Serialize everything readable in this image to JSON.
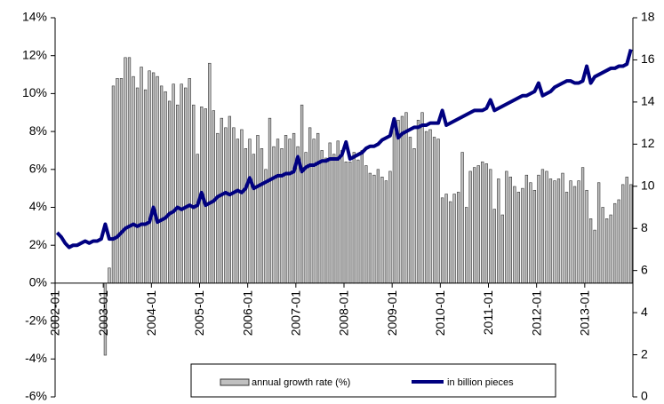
{
  "chart_data": {
    "type": "bar_line",
    "categories": [
      "2002-01",
      null,
      null,
      null,
      null,
      null,
      null,
      null,
      null,
      null,
      null,
      null,
      "2003-01",
      null,
      null,
      null,
      null,
      null,
      null,
      null,
      null,
      null,
      null,
      null,
      "2004-01",
      null,
      null,
      null,
      null,
      null,
      null,
      null,
      null,
      null,
      null,
      null,
      "2005-01",
      null,
      null,
      null,
      null,
      null,
      null,
      null,
      null,
      null,
      null,
      null,
      "2006-01",
      null,
      null,
      null,
      null,
      null,
      null,
      null,
      null,
      null,
      null,
      null,
      "2007-01",
      null,
      null,
      null,
      null,
      null,
      null,
      null,
      null,
      null,
      null,
      null,
      "2008-01",
      null,
      null,
      null,
      null,
      null,
      null,
      null,
      null,
      null,
      null,
      null,
      "2009-01",
      null,
      null,
      null,
      null,
      null,
      null,
      null,
      null,
      null,
      null,
      null,
      "2010-01",
      null,
      null,
      null,
      null,
      null,
      null,
      null,
      null,
      null,
      null,
      null,
      "2011-01",
      null,
      null,
      null,
      null,
      null,
      null,
      null,
      null,
      null,
      null,
      null,
      "2012-01",
      null,
      null,
      null,
      null,
      null,
      null,
      null,
      null,
      null,
      null,
      null,
      "2013-01",
      null,
      null,
      null,
      null,
      null,
      null,
      null,
      null,
      null,
      null,
      null
    ],
    "series": [
      {
        "name": "annual growth rate (%)",
        "type": "bar",
        "color": "#c0c0c0",
        "axis": "y",
        "values": [
          null,
          null,
          null,
          null,
          null,
          null,
          null,
          null,
          null,
          null,
          null,
          null,
          -3.8,
          0.8,
          10.4,
          10.8,
          10.8,
          11.9,
          11.9,
          10.9,
          10.3,
          11.4,
          10.2,
          11.2,
          11.1,
          10.9,
          10.4,
          10.1,
          9.6,
          10.5,
          9.4,
          10.5,
          10.3,
          10.8,
          9.4,
          6.8,
          9.3,
          9.2,
          11.6,
          9.1,
          7.9,
          8.7,
          8.2,
          8.8,
          8.2,
          7.6,
          8.1,
          7.1,
          7.6,
          6.8,
          7.8,
          7.1,
          6.0,
          8.7,
          7.2,
          7.6,
          7.1,
          7.8,
          7.6,
          7.9,
          7.2,
          9.4,
          6.9,
          8.2,
          7.6,
          7.9,
          7.0,
          6.6,
          7.4,
          6.8,
          7.5,
          7.0,
          6.4,
          6.4,
          6.9,
          6.5,
          7.0,
          6.2,
          5.8,
          5.7,
          6.0,
          5.6,
          5.4,
          5.9,
          8.5,
          8.6,
          8.8,
          9.0,
          7.7,
          7.1,
          8.6,
          9.0,
          8.0,
          8.1,
          7.7,
          7.6,
          4.5,
          4.7,
          4.3,
          4.7,
          4.8,
          6.9,
          4.0,
          5.9,
          6.1,
          6.2,
          6.4,
          6.3,
          6.0,
          3.9,
          5.5,
          3.6,
          5.9,
          5.6,
          5.1,
          4.8,
          5.0,
          5.7,
          5.3,
          4.9,
          5.7,
          6.0,
          5.9,
          5.5,
          5.4,
          5.5,
          5.8,
          4.8,
          5.4,
          5.1,
          5.4,
          6.1,
          4.9,
          3.4,
          2.8,
          5.3,
          4.0,
          3.4,
          3.6,
          4.2,
          4.4,
          5.2,
          5.6,
          5.2
        ]
      },
      {
        "name": "in billion pieces",
        "type": "line",
        "color": "#000080",
        "axis": "y2",
        "values": [
          7.8,
          7.6,
          7.3,
          7.1,
          7.2,
          7.2,
          7.3,
          7.4,
          7.3,
          7.4,
          7.4,
          7.5,
          8.2,
          7.5,
          7.5,
          7.6,
          7.8,
          8.0,
          8.1,
          8.2,
          8.1,
          8.2,
          8.2,
          8.3,
          9.0,
          8.3,
          8.4,
          8.5,
          8.7,
          8.8,
          9.0,
          8.9,
          9.0,
          9.1,
          9.0,
          9.1,
          9.7,
          9.1,
          9.2,
          9.3,
          9.5,
          9.6,
          9.7,
          9.6,
          9.7,
          9.8,
          9.7,
          9.9,
          10.4,
          9.9,
          10.0,
          10.1,
          10.2,
          10.3,
          10.4,
          10.5,
          10.5,
          10.6,
          10.6,
          10.7,
          11.4,
          10.7,
          10.9,
          11.0,
          11.0,
          11.1,
          11.2,
          11.2,
          11.3,
          11.3,
          11.3,
          11.5,
          12.1,
          11.3,
          11.4,
          11.5,
          11.6,
          11.8,
          11.9,
          11.9,
          12.0,
          12.2,
          12.3,
          12.4,
          13.2,
          12.3,
          12.5,
          12.6,
          12.7,
          12.8,
          12.8,
          12.9,
          12.9,
          13.0,
          13.0,
          13.0,
          13.6,
          12.9,
          13.0,
          13.1,
          13.2,
          13.3,
          13.4,
          13.5,
          13.6,
          13.6,
          13.6,
          13.7,
          14.1,
          13.6,
          13.7,
          13.8,
          13.9,
          14.0,
          14.1,
          14.2,
          14.3,
          14.3,
          14.4,
          14.5,
          14.9,
          14.3,
          14.4,
          14.5,
          14.7,
          14.8,
          14.9,
          15.0,
          15.0,
          14.9,
          14.9,
          15.0,
          15.7,
          14.9,
          15.2,
          15.3,
          15.4,
          15.5,
          15.6,
          15.6,
          15.7,
          15.7,
          15.8,
          16.5
        ]
      }
    ],
    "ylim": [
      -6,
      14
    ],
    "yticks": [
      {
        "value": -6,
        "label": "-6%"
      },
      {
        "value": -4,
        "label": "-4%"
      },
      {
        "value": -2,
        "label": "-2%"
      },
      {
        "value": 0,
        "label": "0%"
      },
      {
        "value": 2,
        "label": "2%"
      },
      {
        "value": 4,
        "label": "4%"
      },
      {
        "value": 6,
        "label": "6%"
      },
      {
        "value": 8,
        "label": "8%"
      },
      {
        "value": 10,
        "label": "10%"
      },
      {
        "value": 12,
        "label": "12%"
      },
      {
        "value": 14,
        "label": "14%"
      }
    ],
    "y2lim": [
      0,
      18
    ],
    "y2ticks": [
      0,
      2,
      4,
      6,
      8,
      10,
      12,
      14,
      16,
      18
    ],
    "grid": false,
    "legend": "bottom"
  }
}
